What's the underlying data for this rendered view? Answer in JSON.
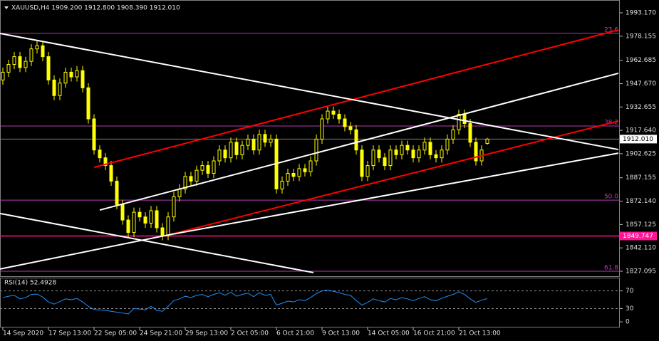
{
  "chart_data": [
    {
      "type": "candlestick",
      "title": "XAUUSD,H4  1909.200 1912.800 1908.390 1912.010",
      "categories": [
        "14 Sep 2020",
        null,
        null,
        null,
        null,
        null,
        null,
        null,
        "17 Sep 13:00",
        null,
        null,
        null,
        null,
        null,
        null,
        null,
        "22 Sep 05:00",
        null,
        null,
        null,
        null,
        null,
        null,
        null,
        "24 Sep 21:00",
        null,
        null,
        null,
        null,
        null,
        null,
        null,
        "29 Sep 13:00",
        null,
        null,
        null,
        null,
        null,
        null,
        null,
        "2 Oct 05:00",
        null,
        null,
        null,
        null,
        null,
        null,
        null,
        "6 Oct 21:00",
        null,
        null,
        null,
        null,
        null,
        null,
        null,
        "9 Oct 13:00",
        null,
        null,
        null,
        null,
        null,
        null,
        null,
        "14 Oct 05:00",
        null,
        null,
        null,
        null,
        null,
        null,
        null,
        "16 Oct 21:00",
        null,
        null,
        null,
        null,
        null,
        null,
        null,
        "21 Oct 13:00",
        null,
        null,
        null,
        null,
        null
      ],
      "open": [
        1950,
        1955,
        1960,
        1965,
        1958,
        1962,
        1970,
        1972,
        1965,
        1950,
        1940,
        1948,
        1955,
        1952,
        1956,
        1945,
        1925,
        1905,
        1900,
        1895,
        1885,
        1870,
        1860,
        1852,
        1865,
        1862,
        1858,
        1866,
        1855,
        1850,
        1862,
        1875,
        1880,
        1888,
        1885,
        1892,
        1895,
        1890,
        1898,
        1905,
        1900,
        1910,
        1902,
        1908,
        1912,
        1905,
        1915,
        1910,
        1912,
        1880,
        1885,
        1890,
        1888,
        1893,
        1891,
        1898,
        1912,
        1925,
        1930,
        1928,
        1925,
        1920,
        1918,
        1905,
        1888,
        1895,
        1905,
        1900,
        1895,
        1905,
        1902,
        1908,
        1905,
        1900,
        1905,
        1910,
        1902,
        1900,
        1905,
        1912,
        1918,
        1928,
        1922,
        1910,
        1898,
        1909.2
      ],
      "high": [
        1958,
        1963,
        1968,
        1968,
        1965,
        1973,
        1975,
        1975,
        1968,
        1953,
        1951,
        1958,
        1958,
        1959,
        1959,
        1948,
        1928,
        1908,
        1903,
        1898,
        1888,
        1873,
        1863,
        1868,
        1868,
        1865,
        1869,
        1869,
        1858,
        1865,
        1878,
        1883,
        1891,
        1891,
        1895,
        1898,
        1898,
        1901,
        1908,
        1908,
        1913,
        1913,
        1911,
        1915,
        1915,
        1918,
        1918,
        1915,
        1915,
        1888,
        1893,
        1893,
        1896,
        1896,
        1901,
        1915,
        1928,
        1933,
        1933,
        1931,
        1928,
        1923,
        1921,
        1908,
        1898,
        1908,
        1908,
        1903,
        1908,
        1908,
        1911,
        1911,
        1908,
        1908,
        1913,
        1913,
        1905,
        1908,
        1915,
        1921,
        1931,
        1931,
        1925,
        1913,
        1908,
        1912.8
      ],
      "low": [
        1947,
        1952,
        1957,
        1955,
        1955,
        1959,
        1967,
        1962,
        1947,
        1937,
        1937,
        1945,
        1949,
        1949,
        1942,
        1922,
        1902,
        1897,
        1892,
        1882,
        1867,
        1857,
        1849,
        1849,
        1859,
        1855,
        1855,
        1852,
        1847,
        1847,
        1859,
        1872,
        1877,
        1882,
        1882,
        1889,
        1887,
        1887,
        1895,
        1897,
        1897,
        1899,
        1899,
        1905,
        1902,
        1902,
        1907,
        1907,
        1877,
        1877,
        1882,
        1885,
        1885,
        1888,
        1888,
        1895,
        1909,
        1922,
        1925,
        1922,
        1917,
        1915,
        1902,
        1885,
        1885,
        1892,
        1897,
        1892,
        1892,
        1899,
        1899,
        1902,
        1897,
        1897,
        1902,
        1899,
        1897,
        1897,
        1902,
        1909,
        1915,
        1919,
        1907,
        1895,
        1895,
        1908.39
      ],
      "close": [
        1955,
        1960,
        1965,
        1958,
        1962,
        1970,
        1972,
        1965,
        1950,
        1940,
        1948,
        1955,
        1952,
        1956,
        1945,
        1925,
        1905,
        1900,
        1895,
        1885,
        1870,
        1860,
        1852,
        1865,
        1862,
        1858,
        1866,
        1855,
        1850,
        1862,
        1875,
        1880,
        1888,
        1885,
        1892,
        1895,
        1890,
        1898,
        1905,
        1900,
        1910,
        1902,
        1908,
        1912,
        1905,
        1915,
        1910,
        1912,
        1880,
        1885,
        1890,
        1888,
        1893,
        1891,
        1898,
        1912,
        1925,
        1930,
        1928,
        1925,
        1920,
        1918,
        1905,
        1888,
        1895,
        1905,
        1900,
        1895,
        1905,
        1902,
        1908,
        1905,
        1900,
        1905,
        1910,
        1902,
        1900,
        1905,
        1912,
        1918,
        1928,
        1922,
        1910,
        1898,
        1905,
        1912.01
      ],
      "up_color": "#ffff00",
      "down_color": "#ffff00",
      "ylim": [
        1823.89,
        2001.41
      ],
      "yticks": [
        {
          "value": 1993.17,
          "label": "1993.170"
        },
        1978.155,
        1962.685,
        {
          "value": 1947.67,
          "label": "1947.670"
        },
        1932.655,
        {
          "value": 1917.64,
          "label": "1917.640"
        },
        1902.625,
        1887.155,
        {
          "value": 1872.14,
          "label": "1872.140"
        },
        1857.125,
        {
          "value": 1842.11,
          "label": "1842.110"
        },
        1827.095
      ],
      "fib_levels": [
        {
          "value": 1980.0,
          "label": "23.6"
        },
        {
          "value": 1920.4,
          "label": "38.2"
        },
        {
          "value": 1872.8,
          "label": "50.0"
        },
        {
          "value": 1827.1,
          "label": "61.8"
        }
      ],
      "fib_color": "#b43cb4",
      "support": {
        "value": 1849.747,
        "label": "1849.747",
        "color": "#ff1493"
      },
      "current_price": {
        "value": 1912.01,
        "label": "1912.010"
      },
      "trendlines": [
        {
          "color": "#ff0000",
          "points": [
            [
              16,
              1893.9
            ],
            [
              108,
              1982.2
            ]
          ]
        },
        {
          "color": "#ff0000",
          "points": [
            [
              29,
              1850.4
            ],
            [
              108,
              1923.6
            ]
          ]
        },
        {
          "color": "#ffffff",
          "points": [
            [
              17,
              1866.4
            ],
            [
              108,
              1954.3
            ]
          ]
        },
        {
          "color": "#ffffff",
          "points": [
            [
              29,
              1850.4
            ],
            [
              108,
              1903.0
            ]
          ]
        },
        {
          "color": "#ffffff",
          "points": [
            [
              -0.5,
              1979.9
            ],
            [
              108,
              1905.3
            ]
          ]
        },
        {
          "color": "#ffffff",
          "points": [
            [
              -0.5,
              1864.2
            ],
            [
              54.5,
              1826.2
            ]
          ]
        },
        {
          "color": "#ffffff",
          "points": [
            [
              -0.5,
              1828.5
            ],
            [
              29,
              1850.4
            ]
          ]
        }
      ]
    },
    {
      "type": "line",
      "title": "RSI(14) 52.4928",
      "series": [
        {
          "color": "#1e90ff",
          "values": [
            55,
            58,
            60,
            52,
            55,
            62,
            63,
            56,
            45,
            40,
            46,
            52,
            50,
            53,
            45,
            35,
            28,
            27,
            26,
            24,
            22,
            20,
            18,
            30,
            29,
            27,
            35,
            26,
            24,
            35,
            48,
            52,
            58,
            55,
            60,
            62,
            57,
            62,
            66,
            60,
            67,
            58,
            62,
            65,
            57,
            66,
            60,
            62,
            38,
            42,
            47,
            45,
            50,
            48,
            55,
            64,
            70,
            72,
            69,
            66,
            62,
            60,
            48,
            38,
            44,
            52,
            48,
            45,
            53,
            50,
            55,
            52,
            48,
            53,
            57,
            50,
            48,
            53,
            58,
            62,
            68,
            62,
            52,
            44,
            49,
            52.49
          ]
        }
      ],
      "ylim": [
        -12.7,
        100
      ],
      "yticks": [
        70,
        30,
        0
      ],
      "levels": [
        70,
        30
      ]
    }
  ]
}
